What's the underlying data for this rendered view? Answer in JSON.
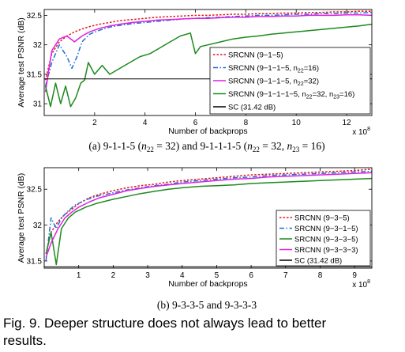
{
  "chart_data": [
    {
      "type": "line",
      "panel": "a",
      "xlabel": "Number of backprops",
      "ylabel": "Average test PSNR (dB)",
      "x_multiplier_label": "x 10",
      "x_multiplier_exp": "8",
      "xlim": [
        0,
        13
      ],
      "ylim": [
        30.8,
        32.6
      ],
      "xticks": [
        2,
        4,
        6,
        8,
        10,
        12
      ],
      "yticks": [
        31,
        31.5,
        32,
        32.5
      ],
      "ytick_labels": [
        "31",
        "31.5",
        "32",
        "32.5"
      ],
      "legend_position": "lower-right",
      "caption_prefix": "(a) 9-1-1-5 (",
      "caption_n": "n",
      "caption_sub1": "22",
      "caption_mid": " = 32) and 9-1-1-1-5 (",
      "caption_eq32": " = 32, ",
      "caption_sub2": "23",
      "caption_end": " = 16)",
      "series": [
        {
          "name": "SRCNN (9−1−5)",
          "color": "#e8141c",
          "dash": "dotted",
          "x": [
            0.05,
            0.3,
            0.6,
            0.9,
            1.2,
            1.5,
            1.8,
            2.2,
            2.6,
            3,
            3.5,
            4,
            4.5,
            5,
            5.5,
            6,
            6.5,
            7,
            7.5,
            8,
            8.5,
            9,
            9.5,
            10,
            10.5,
            11,
            11.5,
            12,
            12.5,
            13
          ],
          "y": [
            31.4,
            31.85,
            32.05,
            32.15,
            32.22,
            32.27,
            32.31,
            32.35,
            32.38,
            32.41,
            32.43,
            32.45,
            32.47,
            32.48,
            32.49,
            32.5,
            32.5,
            32.51,
            32.52,
            32.52,
            32.53,
            32.53,
            32.54,
            32.54,
            32.55,
            32.55,
            32.56,
            32.56,
            32.57,
            32.57
          ]
        },
        {
          "name": "SRCNN (9−1−1−5, n",
          "name_sub": "22",
          "name_tail": "=16)",
          "color": "#1f6fd1",
          "dash": "dashdot",
          "x": [
            0.05,
            0.3,
            0.6,
            0.9,
            1.1,
            1.3,
            1.5,
            1.8,
            2.2,
            2.6,
            3,
            3.5,
            4,
            4.5,
            5,
            5.5,
            6,
            6.5,
            7,
            7.5,
            8,
            8.5,
            9,
            9.5,
            10,
            10.5,
            11,
            11.5,
            12,
            12.5,
            13
          ],
          "y": [
            31.3,
            31.7,
            32.0,
            31.8,
            31.6,
            31.8,
            32.05,
            32.18,
            32.25,
            32.3,
            32.33,
            32.36,
            32.38,
            32.4,
            32.42,
            32.44,
            32.45,
            32.46,
            32.47,
            32.48,
            32.49,
            32.5,
            32.5,
            32.51,
            32.52,
            32.52,
            32.53,
            32.53,
            32.54,
            32.54,
            32.55
          ]
        },
        {
          "name": "SRCNN (9−1−1−5, n",
          "name_sub": "22",
          "name_tail": "=32)",
          "color": "#e020e0",
          "dash": "solid",
          "x": [
            0.05,
            0.3,
            0.6,
            0.9,
            1.2,
            1.5,
            1.8,
            2.2,
            2.6,
            3,
            3.5,
            4,
            4.5,
            5,
            5.5,
            6,
            6.5,
            7,
            7.5,
            8,
            8.5,
            9,
            9.5,
            10,
            10.5,
            11,
            11.5,
            12,
            12.5,
            13
          ],
          "y": [
            31.2,
            31.9,
            32.1,
            32.15,
            32.05,
            32.15,
            32.22,
            32.28,
            32.32,
            32.35,
            32.38,
            32.4,
            32.42,
            32.43,
            32.44,
            32.45,
            32.45,
            32.46,
            32.47,
            32.47,
            32.48,
            32.48,
            32.49,
            32.49,
            32.5,
            32.5,
            32.5,
            32.51,
            32.51,
            32.5
          ]
        },
        {
          "name": "SRCNN (9−1−1−1−5, n",
          "name_sub": "22",
          "name_tail": "=32, n",
          "name_sub2": "23",
          "name_tail2": "=16)",
          "color": "#1e8a1e",
          "dash": "solid",
          "x": [
            0.05,
            0.25,
            0.45,
            0.65,
            0.85,
            1.05,
            1.25,
            1.45,
            1.6,
            1.75,
            2.0,
            2.3,
            2.6,
            3.0,
            3.4,
            3.8,
            4.2,
            4.6,
            5.0,
            5.4,
            5.8,
            6.0,
            6.2,
            6.5,
            7.0,
            7.5,
            8,
            8.5,
            9,
            9.5,
            10,
            10.5,
            11,
            11.5,
            12,
            12.5,
            13
          ],
          "y": [
            31.3,
            30.95,
            31.35,
            31.0,
            31.3,
            30.95,
            31.1,
            31.35,
            31.4,
            31.7,
            31.5,
            31.65,
            31.5,
            31.6,
            31.7,
            31.8,
            31.85,
            31.95,
            32.05,
            32.15,
            32.2,
            31.85,
            31.97,
            32.0,
            32.05,
            32.1,
            32.13,
            32.15,
            32.18,
            32.2,
            32.22,
            32.24,
            32.26,
            32.28,
            32.3,
            32.32,
            32.35
          ]
        },
        {
          "name": "SC (31.42 dB)",
          "color": "#000000",
          "dash": "solid",
          "x": [
            0,
            13
          ],
          "y": [
            31.42,
            31.42
          ]
        }
      ]
    },
    {
      "type": "line",
      "panel": "b",
      "xlabel": "Number of backprops",
      "ylabel": "Average test PSNR (dB)",
      "x_multiplier_label": "x 10",
      "x_multiplier_exp": "8",
      "xlim": [
        0,
        9.5
      ],
      "ylim": [
        31.4,
        32.8
      ],
      "xticks": [
        1,
        2,
        3,
        4,
        5,
        6,
        7,
        8,
        9
      ],
      "yticks": [
        31.5,
        32,
        32.5
      ],
      "ytick_labels": [
        "31.5",
        "32",
        "32.5"
      ],
      "legend_position": "lower-right",
      "caption": "(b) 9-3-3-5 and 9-3-3-3",
      "series": [
        {
          "name": "SRCNN (9−3−5)",
          "color": "#e8141c",
          "dash": "dotted",
          "x": [
            0.05,
            0.2,
            0.4,
            0.6,
            0.8,
            1.0,
            1.3,
            1.6,
            2.0,
            2.4,
            2.8,
            3.2,
            3.6,
            4.0,
            4.5,
            5.0,
            5.5,
            6.0,
            6.5,
            7.0,
            7.5,
            8.0,
            8.5,
            9.0,
            9.5
          ],
          "y": [
            31.6,
            31.9,
            32.05,
            32.15,
            32.22,
            32.3,
            32.38,
            32.43,
            32.48,
            32.52,
            32.55,
            32.57,
            32.6,
            32.62,
            32.64,
            32.66,
            32.68,
            32.7,
            32.71,
            32.72,
            32.73,
            32.74,
            32.75,
            32.76,
            32.78
          ]
        },
        {
          "name": "SRCNN (9−3−1−5)",
          "color": "#1f6fd1",
          "dash": "dashdot",
          "x": [
            0.05,
            0.2,
            0.35,
            0.5,
            0.7,
            0.9,
            1.2,
            1.5,
            2.0,
            2.4,
            2.8,
            3.2,
            3.6,
            4.0,
            4.5,
            5.0,
            5.5,
            6.0,
            6.5,
            7.0,
            7.5,
            8.0,
            8.5,
            9.0,
            9.5
          ],
          "y": [
            31.5,
            32.1,
            31.95,
            32.1,
            32.2,
            32.28,
            32.35,
            32.4,
            32.45,
            32.49,
            32.52,
            32.55,
            32.57,
            32.6,
            32.62,
            32.64,
            32.66,
            32.67,
            32.69,
            32.7,
            32.71,
            32.72,
            32.73,
            32.74,
            32.75
          ]
        },
        {
          "name": "SRCNN (9−3−3−5)",
          "color": "#1e8a1e",
          "dash": "solid",
          "x": [
            0.05,
            0.2,
            0.35,
            0.5,
            0.7,
            0.9,
            1.2,
            1.5,
            2.0,
            2.4,
            2.8,
            3.2,
            3.6,
            4.0,
            4.5,
            5.0,
            5.5,
            6.0,
            6.5,
            7.0,
            7.5,
            8.0,
            8.5,
            9.0,
            9.5
          ],
          "y": [
            31.6,
            31.9,
            31.45,
            31.95,
            32.1,
            32.18,
            32.25,
            32.3,
            32.36,
            32.4,
            32.44,
            32.47,
            32.5,
            32.52,
            32.54,
            32.55,
            32.56,
            32.58,
            32.59,
            32.6,
            32.61,
            32.62,
            32.63,
            32.64,
            32.65
          ]
        },
        {
          "name": "SRCNN (9−3−3−3)",
          "color": "#e020e0",
          "dash": "solid",
          "x": [
            0.05,
            0.2,
            0.4,
            0.6,
            0.8,
            1.0,
            1.3,
            1.6,
            2.0,
            2.4,
            2.8,
            3.2,
            3.6,
            4.0,
            4.5,
            5.0,
            5.5,
            6.0,
            6.5,
            7.0,
            7.5,
            8.0,
            8.5,
            9.0,
            9.5
          ],
          "y": [
            31.55,
            31.75,
            31.95,
            32.1,
            32.18,
            32.25,
            32.32,
            32.38,
            32.43,
            32.48,
            32.51,
            32.54,
            32.56,
            32.58,
            32.6,
            32.62,
            32.64,
            32.65,
            32.67,
            32.68,
            32.69,
            32.7,
            32.71,
            32.72,
            32.73
          ]
        },
        {
          "name": "SC (31.42 dB)",
          "color": "#000000",
          "dash": "solid",
          "x": [
            0,
            9.5
          ],
          "y": [
            31.42,
            31.42
          ]
        }
      ]
    }
  ],
  "figure_caption_line1": "Fig. 9.  Deeper structure does not always lead to better",
  "figure_caption_line2": "results."
}
